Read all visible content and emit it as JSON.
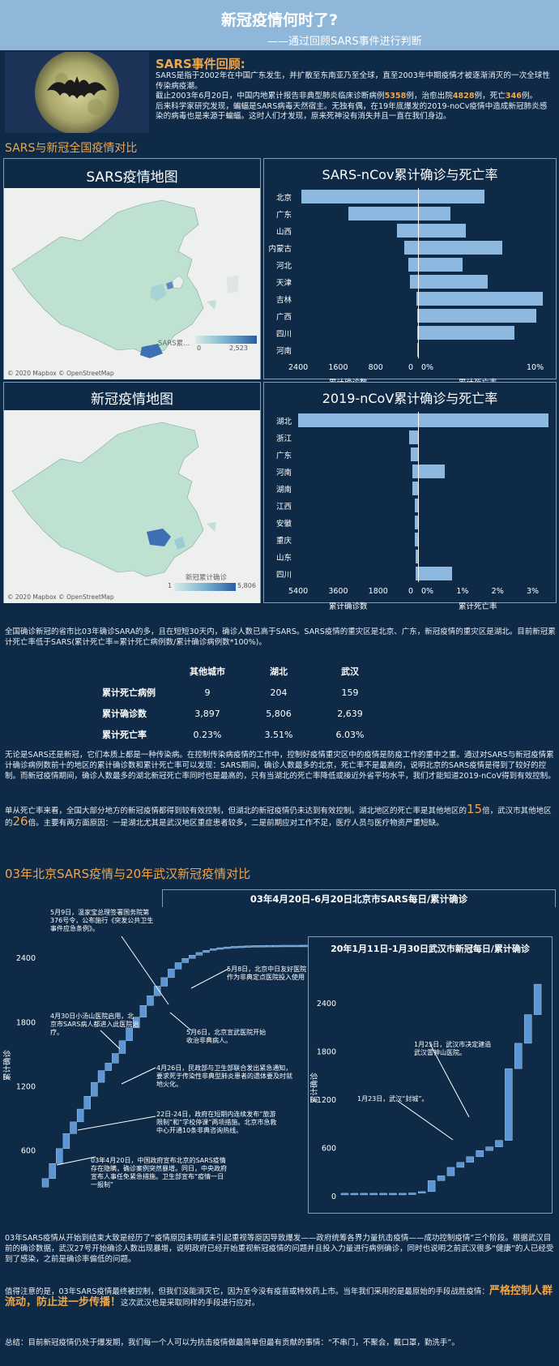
{
  "header": {
    "title": "新冠疫情何时了?",
    "subtitle": "——通过回顾SARS事件进行判断"
  },
  "intro": {
    "heading": "SARS事件回顾:",
    "line1": "SARS是指于2002年在中国广东发生，并扩散至东南亚乃至全球，直至2003年中期疫情才被逐渐消灭的一次全球性传染病疫潮。",
    "line2a": "截止2003年6月20日，中国内地累计报告非典型肺炎临床诊断病例",
    "cases": "5358",
    "line2b": "例，治愈出院",
    "cured": "4828",
    "line2c": "例，死亡",
    "deaths": "346",
    "line2d": "例。",
    "line3": "后来科学家研究发现，蝙蝠是SARS病毒天然宿主。无独有偶，在19年底爆发的2019-noCv疫情中造成新冠肺炎感染的病毒也是来源于蝙蝠。这时人们才发现，原来死神没有消失并且一直在我们身边。"
  },
  "section1": {
    "heading": "SARS与新冠全国疫情对比"
  },
  "sars_map": {
    "title": "SARS疫情地图",
    "legend_label": "SARS累...",
    "legend_min": "0",
    "legend_max": "2,523",
    "credit": "© 2020 Mapbox © OpenStreetMap"
  },
  "ncov_map": {
    "title": "新冠疫情地图",
    "legend_label": "新冠累计确诊",
    "legend_min": "1",
    "legend_max": "5,806",
    "credit": "© 2020 Mapbox © OpenStreetMap"
  },
  "sars_chart": {
    "title": "SARS-nCov累计确诊与死亡率",
    "left_ticks": [
      "2400",
      "1600",
      "800",
      "0"
    ],
    "right_ticks": [
      "0%",
      "10%"
    ],
    "left_label": "累计确诊数",
    "right_label": "累计死亡率"
  },
  "ncov_chart": {
    "title": "2019-nCoV累计确诊与死亡率",
    "left_ticks": [
      "5400",
      "3600",
      "1800",
      "0"
    ],
    "right_ticks": [
      "0%",
      "1%",
      "2%",
      "3%"
    ],
    "left_label": "累计确诊数",
    "right_label": "累计死亡率"
  },
  "chart_data": [
    {
      "type": "bar",
      "title": "SARS-nCov累计确诊与死亡率",
      "categories": [
        "北京",
        "广东",
        "山西",
        "内蒙古",
        "河北",
        "天津",
        "吉林",
        "广西",
        "四川",
        "河南"
      ],
      "series": [
        {
          "name": "累计确诊数",
          "values": [
            2523,
            1512,
            448,
            290,
            215,
            175,
            35,
            22,
            18,
            15
          ]
        },
        {
          "name": "累计死亡率",
          "values": [
            7.6,
            3.7,
            5.4,
            9.7,
            5.1,
            8.0,
            14.3,
            13.6,
            11.1,
            0
          ]
        }
      ],
      "left_axis": [
        0,
        2600
      ],
      "right_axis": [
        0,
        15
      ]
    },
    {
      "type": "bar",
      "title": "2019-nCoV累计确诊与死亡率",
      "categories": [
        "湖北",
        "浙江",
        "广东",
        "河南",
        "湖南",
        "江西",
        "安徽",
        "重庆",
        "山东",
        "四川"
      ],
      "series": [
        {
          "name": "累计确诊数",
          "values": [
            5806,
            428,
            354,
            278,
            277,
            162,
            152,
            147,
            130,
            108
          ]
        },
        {
          "name": "累计死亡率",
          "values": [
            3.5,
            0,
            0,
            0.7,
            0,
            0,
            0,
            0,
            0,
            0.9
          ]
        }
      ],
      "left_axis": [
        0,
        5800
      ],
      "right_axis": [
        0,
        3.5
      ]
    },
    {
      "type": "bar",
      "title": "03年4月20日-6月20日北京市SARS每日/累计确诊",
      "ylabel": "累计确诊",
      "yticks": [
        600,
        1200,
        1800,
        2400
      ],
      "values": [
        340,
        480,
        620,
        760,
        870,
        990,
        1110,
        1240,
        1350,
        1420,
        1510,
        1630,
        1750,
        1850,
        1960,
        2050,
        2140,
        2220,
        2300,
        2360,
        2400,
        2430,
        2455,
        2475,
        2490,
        2500,
        2507,
        2512,
        2515,
        2518,
        2520,
        2521,
        2522,
        2522,
        2523,
        2523,
        2523,
        2523
      ]
    },
    {
      "type": "bar",
      "title": "20年1月11日-1月30日武汉市新冠每日/累计确诊",
      "ylabel": "累计确诊",
      "yticks": [
        0,
        600,
        1200,
        1800,
        2400
      ],
      "values": [
        41,
        41,
        41,
        41,
        41,
        41,
        41,
        45,
        62,
        198,
        258,
        363,
        425,
        495,
        572,
        618,
        698,
        1590,
        1905,
        2261,
        2639
      ]
    }
  ],
  "analysis1": "全国确诊新冠的省市比03年确诊SARA的多，且在短短30天内，确诊人数已高于SARS。SARS疫情的重灾区是北京、广东，新冠疫情的重灾区是湖北。目前新冠累计死亡率低于SARS(累计死亡率=累计死亡病例数/累计确诊病例数*100%)。",
  "stats": {
    "headers": [
      "",
      "其他城市",
      "湖北",
      "武汉"
    ],
    "rows": [
      [
        "累计死亡病例",
        "9",
        "204",
        "159"
      ],
      [
        "累计确诊数",
        "3,897",
        "5,806",
        "2,639"
      ],
      [
        "累计死亡率",
        "0.23%",
        "3.51%",
        "6.03%"
      ]
    ]
  },
  "analysis2": "无论是SARS还是新冠，它们本质上都是一种传染病。在控制传染病疫情的工作中，控制好疫情重灾区中的疫情是防疫工作的重中之重。通过对SARS与新冠疫情累计确诊病例数前十的地区的累计确诊数和累计死亡率可以发现：SARS期间，确诊人数最多的北京，死亡率不是最高的，说明北京的SARS疫情是得到了较好的控制。而新冠疫情期间，确诊人数最多的湖北新冠死亡率同时也是最高的，只有当湖北的死亡率降低或接近外省平均水平，我们才能知道2019-nCoV得到有效控制。",
  "analysis3a": "单从死亡率来看，全国大部分地方的新冠疫情都得到较有效控制，但湖北的新冠疫情仍未达到有效控制。湖北地区的死亡率是其他地区的",
  "analysis3_n1": "15",
  "analysis3b": "倍，武汉市其他地区的",
  "analysis3_n2": "26",
  "analysis3c": "倍。主要有两方面原因：一是湖北尤其是武汉地区重症患者较多，二是前期应对工作不足，医疗人员与医疗物资严重短缺。",
  "section2": {
    "heading": "03年北京SARS疫情与20年武汉新冠疫情对比"
  },
  "beijing": {
    "title": "03年4月20日-6月20日北京市SARS每日/累计确诊",
    "ylabel": "累计确诊",
    "yticks": [
      "600",
      "1200",
      "1800",
      "2400"
    ],
    "notes": [
      "5月9日，温家宝总理签署国务院第376号令，公布施行《突发公共卫生事件应急条例》。",
      "5月8日，北京中日友好医院作为非典定点医院投入使用",
      "4月30日小汤山医院启用，北京市SARS病人都进入此医院治疗。",
      "5月6日，北京宣武医院开始收治非典病人。",
      "4月26日，民政部与卫生部联合发出紧急通知，要求死于传染性非典型肺炎患者的遗体要及时就地火化。",
      "22日-24日，政府在短期内连续发布“旅游限制”和“学校停课”两项措施。北京市急救中心开通10条非典咨询热线。",
      "03年4月20日，中国政府宣布北京的SARS疫情存在隐瞒，确诊案例突然暴增。同日，中央政府宣布人事任免紧急措施。卫生部宣布“疫情一日一报制”"
    ]
  },
  "wuhan": {
    "title": "20年1月11日-1月30日武汉市新冠每日/累计确诊",
    "ylabel": "累计确诊",
    "yticks": [
      "0",
      "600",
      "1200",
      "1800",
      "2400"
    ],
    "notes": [
      "1月25日，武汉市决定建造武汉雷神山医院。",
      "1月23日，武汉“封城”。"
    ]
  },
  "analysis4": "03年SARS疫情从开始到结束大致是经历了“疫情原因未明或未引起重视等原因导致爆发——政府统筹各界力量抗击疫情——成功控制疫情”三个阶段。根据武汉目前的确诊数据，武汉27号开始确诊人数出现暴增，说明政府已经开始重视新冠疫情的问题并且投入力量进行病例确诊，同时也说明之前武汉很多“健康”的人已经受到了感染，之前是确诊率偏低的问题。",
  "analysis5a": "值得注意的是，03年SARS疫情最终被控制，但我们没能消灭它，因为至今没有疫苗或特效药上市。当年我们采用的是最原始的手段战胜疫情：",
  "analysis5_em": "严格控制人群流动，防止进一步传播！",
  "analysis5b": "这次武汉也是采取同样的手段进行应对。",
  "summary": "总结：目前新冠疫情仍处于爆发期，我们每一个人可以为抗击疫情做最简单但最有贡献的事情：“不串门，不聚会，戴口罩，勤洗手”。"
}
